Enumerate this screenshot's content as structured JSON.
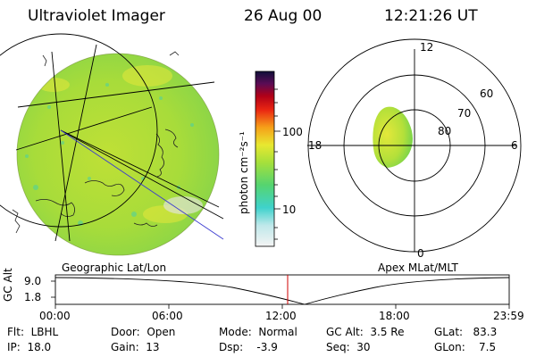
{
  "header": {
    "instrument": "Ultraviolet Imager",
    "date": "26 Aug 00",
    "time": "12:21:26 UT"
  },
  "colorbar": {
    "unit_label": "photon cm⁻²s⁻¹",
    "ticks": [
      "100",
      "10"
    ]
  },
  "polar_plot": {
    "mlt_labels": [
      "12",
      "18",
      "6",
      "0"
    ],
    "lat_labels": [
      "60",
      "70",
      "80"
    ]
  },
  "panel_labels": {
    "left": "Geographic Lat/Lon",
    "right": "Apex MLat/MLT"
  },
  "altitude_strip": {
    "axis_label": "GC Alt",
    "ticks": [
      "9.0",
      "1.8"
    ],
    "time_ticks": [
      "00:00",
      "06:00",
      "12:00",
      "18:00",
      "23:59"
    ]
  },
  "info": {
    "flt": "Flt:  LBHL",
    "ip": "IP:  18.0",
    "door": "Door:  Open",
    "gain": "Gain:  13",
    "mode": "Mode:  Normal",
    "dsp": "Dsp:    -3.9",
    "gcalt": "GC Alt:  3.5 Re",
    "seq": "Seq:  30",
    "glat": "GLat:   83.3",
    "glon": "GLon:    7.5"
  }
}
